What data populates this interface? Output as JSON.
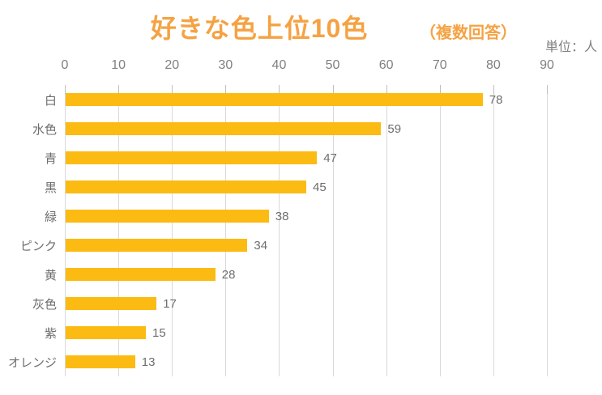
{
  "header": {
    "title": "好きな色上位10色",
    "subtitle": "（複数回答）",
    "unit_label": "単位：人"
  },
  "colors": {
    "bar": "#FCBB13",
    "title": "#F5A243",
    "grid": "#D9D9D9",
    "tick": "#BFBFBF",
    "axis_text": "#808080",
    "label_text": "#6E6E6E"
  },
  "chart_data": {
    "type": "bar",
    "orientation": "horizontal",
    "title": "好きな色上位10色",
    "subtitle": "（複数回答）",
    "unit": "単位：人",
    "categories": [
      "白",
      "水色",
      "青",
      "黒",
      "緑",
      "ピンク",
      "黄",
      "灰色",
      "紫",
      "オレンジ"
    ],
    "values": [
      78,
      59,
      47,
      45,
      38,
      34,
      28,
      17,
      15,
      13
    ],
    "x_ticks": [
      0,
      10,
      20,
      30,
      40,
      50,
      60,
      70,
      80,
      90
    ],
    "xlim": [
      0,
      90
    ],
    "grid": true,
    "data_labels": true,
    "legend": false
  }
}
